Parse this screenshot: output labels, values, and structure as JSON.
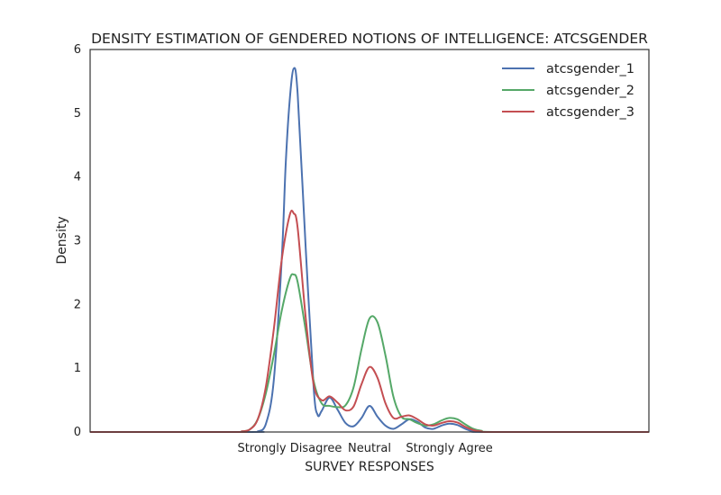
{
  "chart_data": {
    "type": "line",
    "title": "DENSITY ESTIMATION OF GENDERED NOTIONS OF INTELLIGENCE: ATCSGENDER",
    "xlabel": "SURVEY RESPONSES",
    "ylabel": "Density",
    "xlim": [
      -1.5,
      5.5
    ],
    "ylim": [
      0,
      6
    ],
    "yticks": [
      0,
      1,
      2,
      3,
      4,
      5,
      6
    ],
    "xticks": [
      {
        "value": 1,
        "label": "Strongly Disagree"
      },
      {
        "value": 2,
        "label": "Neutral"
      },
      {
        "value": 3,
        "label": "Strongly Agree"
      }
    ],
    "legend_position": "top-right",
    "grid": false,
    "series": [
      {
        "name": "atcsgender_1",
        "color": "#4c72b0",
        "x": [
          -1.5,
          0.5,
          0.6,
          0.7,
          0.8,
          0.9,
          0.95,
          1.0,
          1.05,
          1.1,
          1.2,
          1.3,
          1.35,
          1.4,
          1.5,
          1.6,
          1.7,
          1.8,
          1.9,
          2.0,
          2.1,
          2.2,
          2.3,
          2.4,
          2.5,
          2.6,
          2.7,
          2.8,
          2.9,
          3.0,
          3.1,
          3.2,
          3.3,
          3.5,
          5.5
        ],
        "y": [
          0,
          0,
          0.01,
          0.12,
          0.8,
          2.7,
          4.2,
          5.2,
          5.7,
          5.3,
          2.9,
          0.7,
          0.27,
          0.33,
          0.54,
          0.35,
          0.14,
          0.09,
          0.22,
          0.41,
          0.24,
          0.1,
          0.05,
          0.12,
          0.2,
          0.16,
          0.07,
          0.05,
          0.1,
          0.13,
          0.11,
          0.05,
          0.01,
          0,
          0
        ]
      },
      {
        "name": "atcsgender_2",
        "color": "#55a868",
        "x": [
          -1.5,
          0.3,
          0.4,
          0.5,
          0.6,
          0.7,
          0.8,
          0.9,
          1.0,
          1.05,
          1.1,
          1.2,
          1.3,
          1.4,
          1.5,
          1.6,
          1.7,
          1.8,
          1.9,
          2.0,
          2.1,
          2.2,
          2.3,
          2.4,
          2.5,
          2.6,
          2.7,
          2.8,
          2.9,
          3.0,
          3.1,
          3.2,
          3.3,
          3.4,
          3.6,
          5.5
        ],
        "y": [
          0,
          0,
          0.01,
          0.04,
          0.2,
          0.6,
          1.2,
          1.9,
          2.4,
          2.47,
          2.35,
          1.6,
          0.8,
          0.45,
          0.41,
          0.39,
          0.42,
          0.7,
          1.3,
          1.78,
          1.72,
          1.2,
          0.55,
          0.24,
          0.2,
          0.14,
          0.1,
          0.12,
          0.18,
          0.22,
          0.2,
          0.12,
          0.05,
          0.02,
          0,
          0
        ]
      },
      {
        "name": "atcsgender_3",
        "color": "#c44e52",
        "x": [
          -1.5,
          0.3,
          0.4,
          0.5,
          0.6,
          0.7,
          0.8,
          0.9,
          1.0,
          1.05,
          1.1,
          1.2,
          1.3,
          1.4,
          1.5,
          1.6,
          1.7,
          1.8,
          1.9,
          2.0,
          2.1,
          2.2,
          2.3,
          2.4,
          2.5,
          2.6,
          2.7,
          2.8,
          2.9,
          3.0,
          3.1,
          3.2,
          3.3,
          3.4,
          3.6,
          5.5
        ],
        "y": [
          0,
          0,
          0.01,
          0.04,
          0.2,
          0.7,
          1.6,
          2.7,
          3.4,
          3.43,
          3.2,
          1.8,
          0.75,
          0.5,
          0.56,
          0.46,
          0.34,
          0.4,
          0.75,
          1.02,
          0.85,
          0.45,
          0.22,
          0.24,
          0.26,
          0.2,
          0.12,
          0.1,
          0.14,
          0.17,
          0.15,
          0.08,
          0.03,
          0.01,
          0,
          0
        ]
      }
    ]
  }
}
